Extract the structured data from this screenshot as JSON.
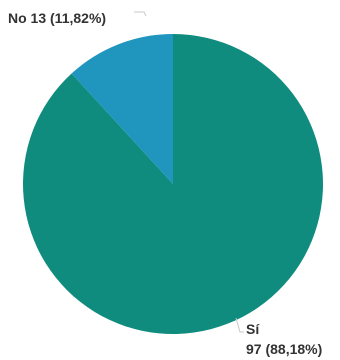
{
  "chart_data": {
    "type": "pie",
    "title": "",
    "slices": [
      {
        "name": "Sí",
        "value": 97,
        "percent_text": "97 (88,18%)",
        "color": "#0f8c7e"
      },
      {
        "name": "No",
        "value": 13,
        "percent_text": "No 13 (11,82%)",
        "color": "#2096bf"
      }
    ],
    "start_angle_deg": 0,
    "direction": "clockwise",
    "legend": "none"
  }
}
